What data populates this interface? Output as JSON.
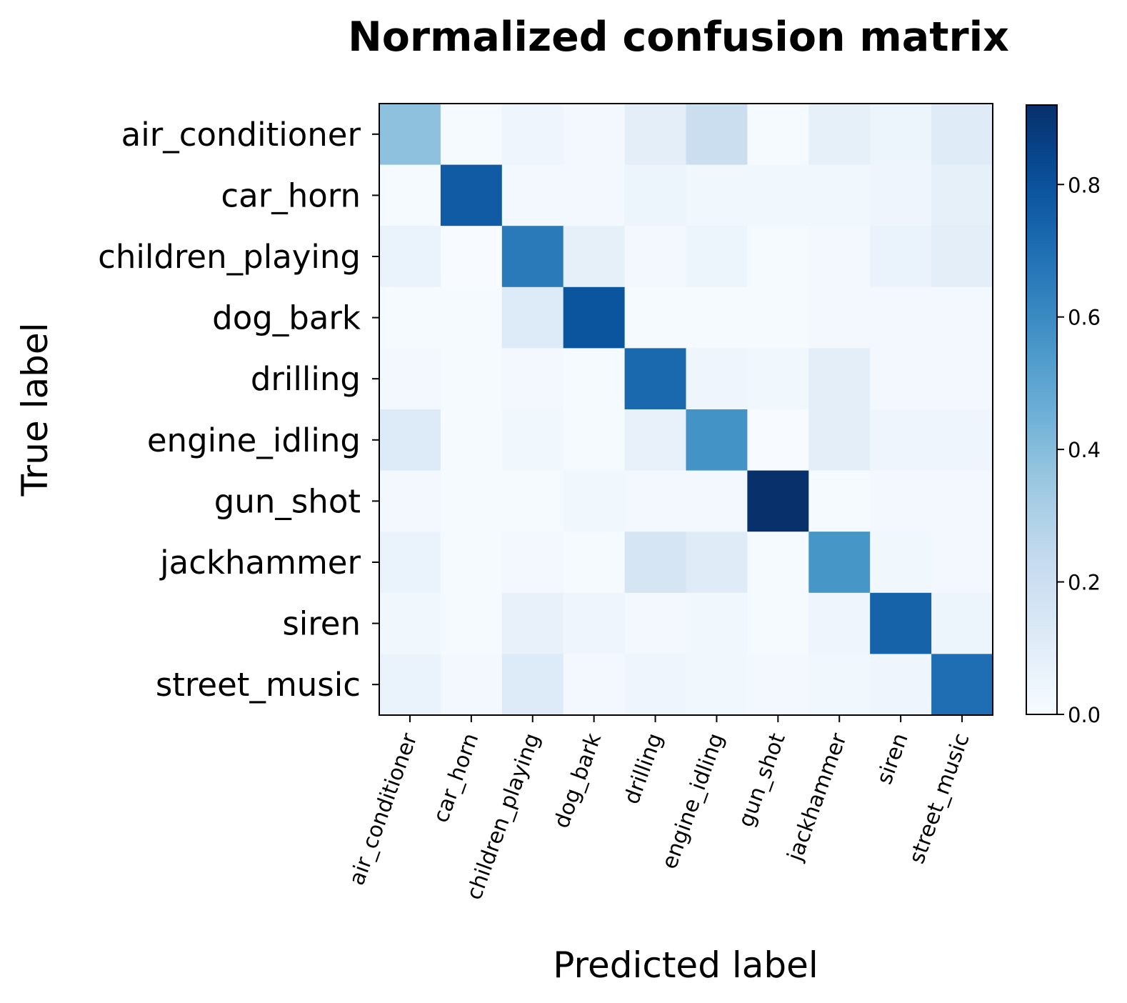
{
  "chart_data": {
    "type": "heatmap",
    "title": "Normalized confusion matrix",
    "xlabel": "Predicted label",
    "ylabel": "True label",
    "x_categories": [
      "air_conditioner",
      "car_horn",
      "children_playing",
      "dog_bark",
      "drilling",
      "engine_idling",
      "gun_shot",
      "jackhammer",
      "siren",
      "street_music"
    ],
    "y_categories": [
      "air_conditioner",
      "car_horn",
      "children_playing",
      "dog_bark",
      "drilling",
      "engine_idling",
      "gun_shot",
      "jackhammer",
      "siren",
      "street_music"
    ],
    "values": [
      [
        0.38,
        0.01,
        0.04,
        0.02,
        0.09,
        0.21,
        0.01,
        0.08,
        0.05,
        0.11
      ],
      [
        0.01,
        0.77,
        0.02,
        0.02,
        0.05,
        0.03,
        0.03,
        0.03,
        0.04,
        0.08
      ],
      [
        0.06,
        0.0,
        0.66,
        0.08,
        0.02,
        0.05,
        0.01,
        0.02,
        0.06,
        0.09
      ],
      [
        0.01,
        0.01,
        0.12,
        0.79,
        0.01,
        0.01,
        0.01,
        0.02,
        0.02,
        0.02
      ],
      [
        0.02,
        0.01,
        0.02,
        0.01,
        0.72,
        0.04,
        0.03,
        0.09,
        0.02,
        0.02
      ],
      [
        0.12,
        0.01,
        0.03,
        0.01,
        0.07,
        0.57,
        0.0,
        0.09,
        0.04,
        0.04
      ],
      [
        0.02,
        0.01,
        0.01,
        0.03,
        0.02,
        0.02,
        0.92,
        0.01,
        0.02,
        0.02
      ],
      [
        0.06,
        0.01,
        0.02,
        0.01,
        0.16,
        0.11,
        0.01,
        0.56,
        0.03,
        0.02
      ],
      [
        0.03,
        0.01,
        0.07,
        0.04,
        0.02,
        0.03,
        0.01,
        0.04,
        0.74,
        0.05
      ],
      [
        0.06,
        0.02,
        0.12,
        0.02,
        0.04,
        0.03,
        0.02,
        0.03,
        0.04,
        0.7
      ]
    ],
    "vmin": 0.0,
    "vmax": 0.92,
    "colormap": "Blues",
    "colorbar_ticks": [
      "0.0",
      "0.2",
      "0.4",
      "0.6",
      "0.8"
    ],
    "grid": false
  }
}
